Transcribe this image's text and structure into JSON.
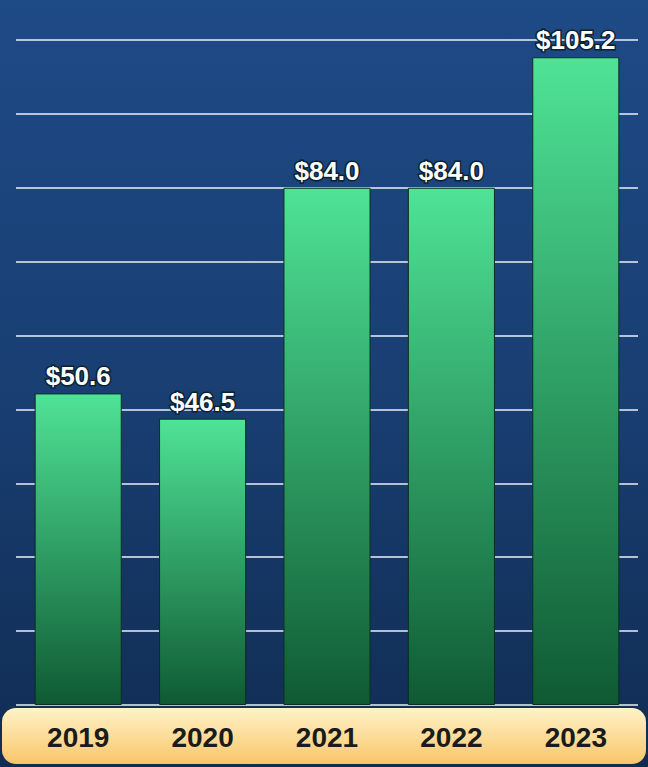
{
  "chart_data": {
    "type": "bar",
    "categories": [
      "2019",
      "2020",
      "2021",
      "2022",
      "2023"
    ],
    "values": [
      50.6,
      46.5,
      84.0,
      84.0,
      105.2
    ],
    "value_labels": [
      "$50.6",
      "$46.5",
      "$84.0",
      "$84.0",
      "$105.2"
    ],
    "color": "#4fe396",
    "ylim": [
      0,
      108
    ],
    "yticks": [
      0,
      12,
      24,
      36,
      48,
      60,
      72,
      84,
      96,
      108
    ],
    "grid": true,
    "data_labels": true,
    "tick_labels": "x"
  }
}
